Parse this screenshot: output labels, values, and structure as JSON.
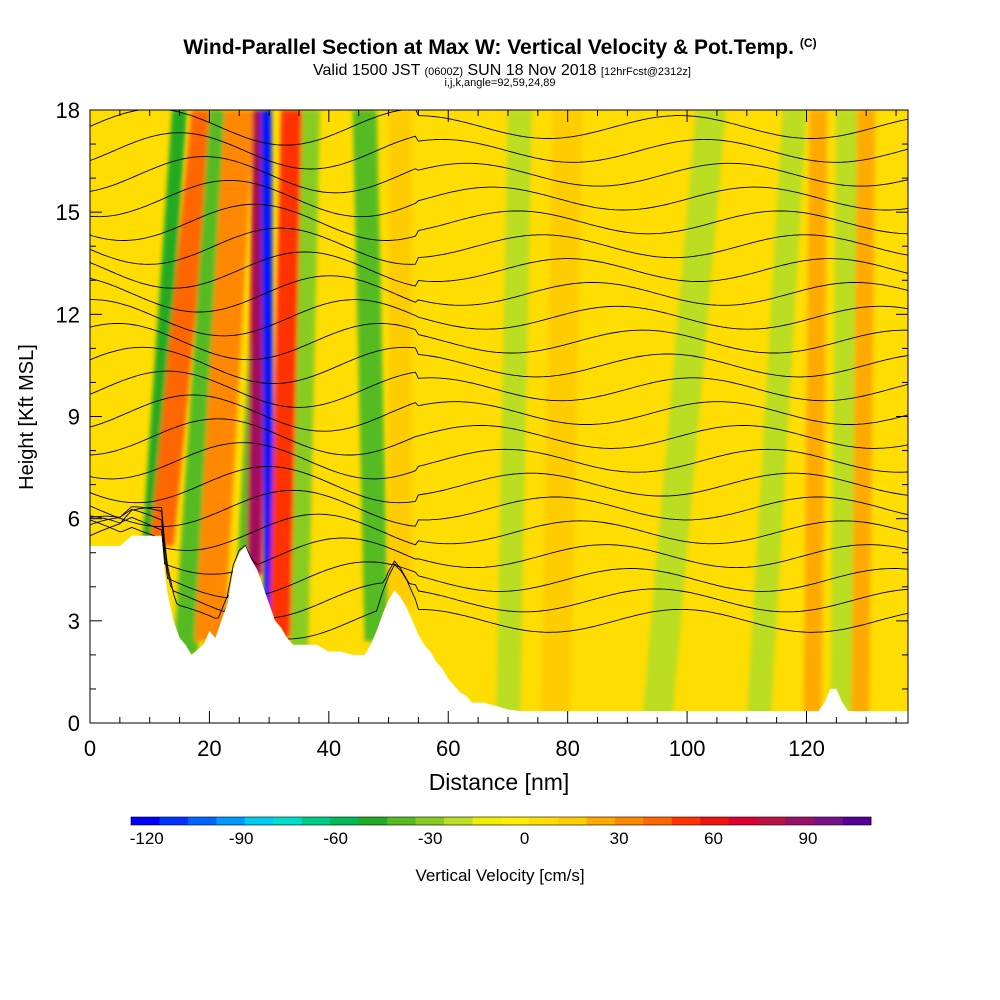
{
  "header": {
    "title": "Wind-Parallel Section at Max W: Vertical Velocity & Pot.Temp.",
    "copyright_tag": "(C)",
    "valid_prefix": "Valid 1500 JST",
    "valid_utc": "(0600Z)",
    "valid_date": "SUN 18 Nov 2018",
    "forecast_tag": "[12hrFcst@2312z]",
    "section_params": "i,j,k,angle=92,59,24,89"
  },
  "chart_data": {
    "type": "heatmap",
    "xlabel": "Distance [nm]",
    "ylabel": "Height [Kft MSL]",
    "xlim": [
      0,
      137
    ],
    "ylim": [
      0,
      18
    ],
    "x_ticks": [
      0,
      20,
      40,
      60,
      80,
      100,
      120
    ],
    "y_ticks": [
      0,
      3,
      6,
      9,
      12,
      15,
      18
    ],
    "colorbar": {
      "label": "Vertical Velocity [cm/s]",
      "range": [
        -125,
        110
      ],
      "tick_values": [
        -120,
        -90,
        -60,
        -30,
        0,
        30,
        60,
        90
      ],
      "tick_labels": [
        "-120",
        "-90",
        "-60",
        "-30",
        "0",
        "30",
        "60",
        "90"
      ],
      "colors": [
        "#0000ff",
        "#0033ff",
        "#0066ff",
        "#0099ff",
        "#00ccee",
        "#00ddcc",
        "#00cc88",
        "#00bb55",
        "#22aa22",
        "#55bb22",
        "#88cc22",
        "#bbdd22",
        "#eeee00",
        "#ffee00",
        "#ffdd00",
        "#ffcc00",
        "#ffaa00",
        "#ff8800",
        "#ff6600",
        "#ff3300",
        "#ee1111",
        "#dd0033",
        "#bb1144",
        "#991166",
        "#771188",
        "#550099"
      ]
    },
    "terrain_kft": {
      "x": [
        0,
        5,
        7,
        12,
        12.5,
        13,
        14,
        15,
        16,
        17,
        19,
        20,
        21,
        23,
        24,
        25,
        26,
        27,
        28,
        29,
        30,
        31,
        32,
        33,
        34,
        35,
        36,
        38,
        40,
        42,
        44,
        46,
        47,
        48,
        49,
        50,
        51,
        52,
        53,
        54,
        55,
        56,
        57,
        58,
        59,
        60,
        61,
        62,
        63,
        64,
        65,
        66,
        68,
        70,
        72,
        80,
        90,
        100,
        110,
        120,
        122,
        123,
        124,
        125,
        126,
        127,
        130,
        137
      ],
      "y": [
        5.2,
        5.2,
        5.5,
        5.5,
        4.5,
        3.8,
        3.0,
        2.5,
        2.3,
        2.0,
        2.3,
        2.7,
        2.5,
        3.5,
        4.5,
        5.0,
        5.2,
        4.8,
        4.5,
        4.0,
        3.5,
        3.0,
        2.8,
        2.5,
        2.3,
        2.3,
        2.3,
        2.3,
        2.1,
        2.1,
        2.0,
        2.0,
        2.3,
        2.7,
        3.2,
        3.6,
        3.9,
        3.7,
        3.4,
        3.0,
        2.6,
        2.3,
        2.1,
        1.8,
        1.6,
        1.3,
        1.1,
        0.9,
        0.8,
        0.6,
        0.6,
        0.6,
        0.5,
        0.4,
        0.35,
        0.35,
        0.35,
        0.35,
        0.35,
        0.35,
        0.35,
        0.6,
        1.0,
        1.0,
        0.6,
        0.35,
        0.35,
        0.35
      ]
    },
    "vertical_velocity_features": [
      {
        "x_base": 10,
        "x_top": 15,
        "width": 2.5,
        "value": -45
      },
      {
        "x_base": 12,
        "x_top": 19,
        "width": 4,
        "value": 45
      },
      {
        "x_base": 16,
        "x_top": 22,
        "width": 4,
        "value": -35
      },
      {
        "x_base": 20,
        "x_top": 25,
        "width": 5,
        "value": 35
      },
      {
        "x_base": 25.5,
        "x_top": 29.5,
        "width": 1.5,
        "value": -40
      },
      {
        "x_base": 27.5,
        "x_top": 28.5,
        "width": 2.5,
        "value": 75
      },
      {
        "x_base": 30,
        "x_top": 29.5,
        "width": 1.8,
        "value": -115
      },
      {
        "x_base": 32,
        "x_top": 34,
        "width": 4,
        "value": 50
      },
      {
        "x_base": 35,
        "x_top": 37,
        "width": 3,
        "value": -30
      },
      {
        "x_base": 48,
        "x_top": 46,
        "width": 4,
        "value": -35
      },
      {
        "x_base": 52,
        "x_top": 52,
        "width": 4,
        "value": 15
      },
      {
        "x_base": 70,
        "x_top": 72,
        "width": 4,
        "value": -18
      },
      {
        "x_base": 78,
        "x_top": 80,
        "width": 5,
        "value": 15
      },
      {
        "x_base": 95,
        "x_top": 104,
        "width": 5,
        "value": -22
      },
      {
        "x_base": 112,
        "x_top": 118,
        "width": 4,
        "value": -22
      },
      {
        "x_base": 121,
        "x_top": 122,
        "width": 3,
        "value": 28
      },
      {
        "x_base": 126,
        "x_top": 127,
        "width": 4,
        "value": -22
      },
      {
        "x_base": 129,
        "x_top": 130,
        "width": 3,
        "value": 22
      }
    ],
    "isentropes_kft": [
      3.0,
      3.6,
      4.2,
      4.9,
      5.6,
      6.3,
      7.0,
      7.7,
      8.4,
      9.1,
      9.8,
      10.5,
      11.2,
      11.9,
      12.6,
      13.3,
      14.0,
      14.7,
      15.4,
      16.1,
      16.8,
      17.5
    ]
  }
}
